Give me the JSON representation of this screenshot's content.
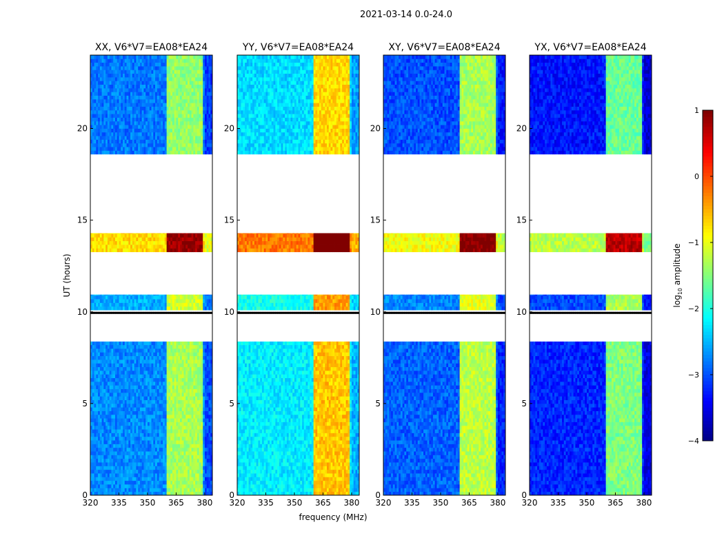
{
  "chart_data": {
    "type": "heatmap",
    "title": "2021-03-14 0.0-24.0",
    "xlabel": "frequency (MHz)",
    "ylabel": "UT (hours)",
    "xlim": [
      320,
      384
    ],
    "ylim": [
      0,
      24
    ],
    "xticks": [
      320,
      335,
      350,
      365,
      380
    ],
    "yticks": [
      0,
      5,
      10,
      15,
      20
    ],
    "time_segments": [
      {
        "start": 0.0,
        "end": 8.38,
        "boost": 0
      },
      {
        "start": 9.9,
        "end": 10.0,
        "boost": -3
      },
      {
        "start": 10.1,
        "end": 10.94,
        "boost": 0.2
      },
      {
        "start": 13.27,
        "end": 14.29,
        "boost": 2.2
      },
      {
        "start": 18.6,
        "end": 24.0,
        "boost": -0.1
      }
    ],
    "bright_channels": [
      [
        360.5,
        364.5
      ],
      [
        365.5,
        369.5
      ],
      [
        370.5,
        374.5
      ],
      [
        375.5,
        379.2
      ]
    ],
    "panels": [
      {
        "title": "XX, V6*V7=EA08*EA24",
        "background": -2.7,
        "band": -1.3
      },
      {
        "title": "YY, V6*V7=EA08*EA24",
        "background": -2.2,
        "band": -0.6
      },
      {
        "title": "XY, V6*V7=EA08*EA24",
        "background": -2.9,
        "band": -1.2
      },
      {
        "title": "YX, V6*V7=EA08*EA24",
        "background": -3.2,
        "band": -1.5
      }
    ],
    "colorbar": {
      "label": "log10 amplitude",
      "label_base": "log",
      "label_sub": "10",
      "label_rest": " amplitude",
      "range": [
        -4,
        1
      ],
      "ticks": [
        1,
        0,
        -1,
        -2,
        -3,
        -4
      ],
      "tick_labels": [
        "1",
        "0",
        "−1",
        "−2",
        "−3",
        "−4"
      ],
      "colormap": "jet"
    }
  }
}
